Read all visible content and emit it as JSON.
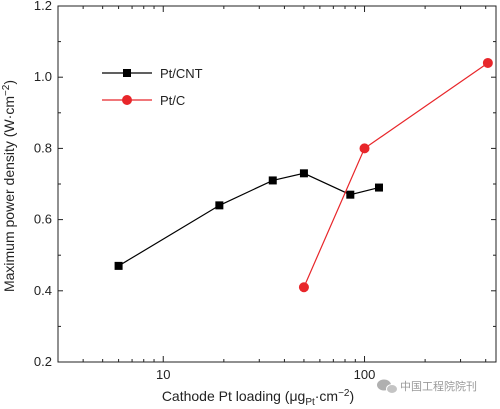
{
  "chart_data": {
    "type": "line",
    "x_scale": "log",
    "xlabel": "Cathode Pt loading (μg",
    "xlabel_sub": "Pt",
    "xlabel_suffix": "·cm",
    "xlabel_sup": "−2",
    "xlabel_close": ")",
    "ylabel": "Maximum power density (W·cm",
    "ylabel_sup": "−2",
    "ylabel_close": ")",
    "xlim": [
      3,
      450
    ],
    "ylim": [
      0.2,
      1.2
    ],
    "x_ticks": [
      10,
      100
    ],
    "x_tick_labels": [
      "10",
      "100"
    ],
    "y_ticks": [
      0.2,
      0.4,
      0.6,
      0.8,
      1.0,
      1.2
    ],
    "y_tick_labels": [
      "0.2",
      "0.4",
      "0.6",
      "0.8",
      "1.0",
      "1.2"
    ],
    "grid": false,
    "legend_position": "top-left",
    "series": [
      {
        "name": "Pt/CNT",
        "color": "#000000",
        "marker": "square",
        "points": [
          {
            "x": 6,
            "y": 0.47
          },
          {
            "x": 19,
            "y": 0.64
          },
          {
            "x": 35,
            "y": 0.71
          },
          {
            "x": 50,
            "y": 0.73
          },
          {
            "x": 85,
            "y": 0.67
          },
          {
            "x": 118,
            "y": 0.69
          }
        ]
      },
      {
        "name": "Pt/C",
        "color": "#e8262a",
        "marker": "circle",
        "points": [
          {
            "x": 50,
            "y": 0.41
          },
          {
            "x": 100,
            "y": 0.8
          },
          {
            "x": 410,
            "y": 1.04
          }
        ]
      }
    ]
  },
  "watermark": {
    "text": "中国工程院院刊",
    "icon": "wechat-icon"
  }
}
